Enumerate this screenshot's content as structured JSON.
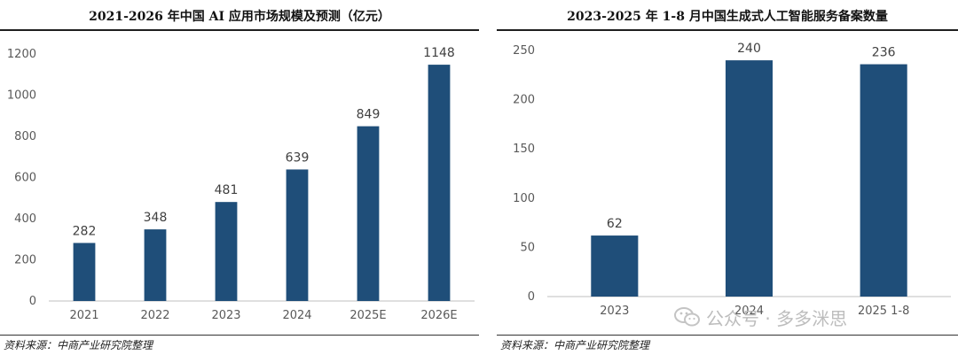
{
  "chart_data": [
    {
      "type": "bar",
      "title": "2021-2026 年中国 AI 应用市场规模及预测（亿元）",
      "categories": [
        "2021",
        "2022",
        "2023",
        "2024",
        "2025E",
        "2026E"
      ],
      "values": [
        282,
        348,
        481,
        639,
        849,
        1148
      ],
      "ylim": [
        0,
        1200
      ],
      "yticks": [
        "0",
        "200",
        "400",
        "600",
        "800",
        "1000",
        "1200"
      ],
      "grid": false,
      "bar_color": "#1f4e79",
      "source": "资料来源：中商产业研究院整理"
    },
    {
      "type": "bar",
      "title": "2023-2025 年 1-8 月中国生成式人工智能服务备案数量",
      "categories": [
        "2023",
        "2024",
        "2025 1-8"
      ],
      "values": [
        62,
        240,
        236
      ],
      "ylim": [
        0,
        250
      ],
      "yticks": [
        "0",
        "50",
        "100",
        "150",
        "200",
        "250"
      ],
      "grid": false,
      "bar_color": "#1f4e79",
      "source": "资料来源：中商产业研究院整理"
    }
  ],
  "watermark": {
    "text": "公众号 · 多多洣思",
    "icon": "wechat-icon"
  }
}
